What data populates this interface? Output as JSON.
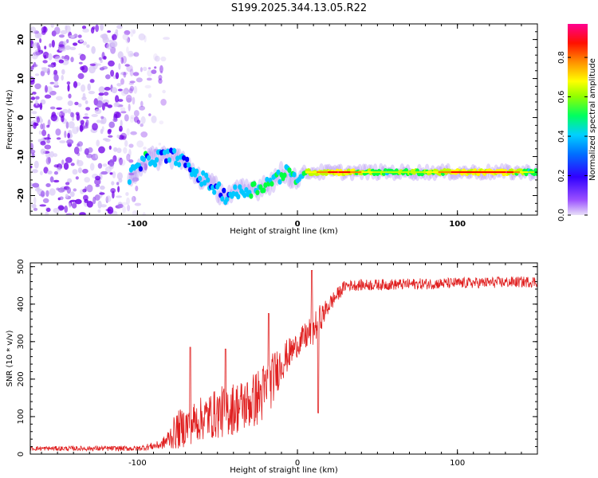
{
  "title": "S199.2025.344.13.05.R22",
  "spectrogram": {
    "xlabel": "Height of straight line (km)",
    "ylabel": "Frequency (Hz)",
    "xlim": [
      -167,
      150
    ],
    "ylim": [
      -25,
      24
    ],
    "xticks": [
      -100,
      0,
      100
    ],
    "yticks": [
      20,
      10,
      0,
      -10,
      -20
    ],
    "colorbar": {
      "label": "Normalized spectral amplitude",
      "range": [
        0,
        0.97
      ],
      "ticks": [
        "0.0",
        "0.2",
        "0.4",
        "0.6",
        "0.8"
      ],
      "colors": [
        "#e8e0f8",
        "#7a00ff",
        "#0000ff",
        "#00c8ff",
        "#00ff40",
        "#c0ff00",
        "#ffff00",
        "#ff8000",
        "#ff0000",
        "#ff0090"
      ]
    },
    "noise_region_x": [
      -167,
      -88
    ],
    "signal_track": [
      {
        "x": -105,
        "f": -15,
        "a": 0.4
      },
      {
        "x": -95,
        "f": -11,
        "a": 0.35
      },
      {
        "x": -85,
        "f": -10,
        "a": 0.3
      },
      {
        "x": -75,
        "f": -10,
        "a": 0.35
      },
      {
        "x": -65,
        "f": -14,
        "a": 0.3
      },
      {
        "x": -55,
        "f": -17,
        "a": 0.35
      },
      {
        "x": -45,
        "f": -20,
        "a": 0.3
      },
      {
        "x": -35,
        "f": -19,
        "a": 0.4
      },
      {
        "x": -25,
        "f": -18,
        "a": 0.55
      },
      {
        "x": -15,
        "f": -16,
        "a": 0.45
      },
      {
        "x": -8,
        "f": -14,
        "a": 0.5
      },
      {
        "x": 0,
        "f": -16,
        "a": 0.35
      },
      {
        "x": 5,
        "f": -14,
        "a": 0.6
      },
      {
        "x": 15,
        "f": -14,
        "a": 0.75
      },
      {
        "x": 25,
        "f": -14,
        "a": 0.9
      },
      {
        "x": 50,
        "f": -14,
        "a": 0.55
      },
      {
        "x": 80,
        "f": -14,
        "a": 0.6
      },
      {
        "x": 100,
        "f": -14,
        "a": 0.85
      },
      {
        "x": 130,
        "f": -14,
        "a": 0.9
      },
      {
        "x": 150,
        "f": -14,
        "a": 0.45
      }
    ]
  },
  "snr": {
    "type": "line",
    "xlabel": "Height of straight line (km)",
    "ylabel": "SNR (10 * v/v)",
    "xlim": [
      -167,
      150
    ],
    "ylim": [
      0,
      510
    ],
    "xticks": [
      -100,
      0,
      100
    ],
    "yticks": [
      0,
      100,
      200,
      300,
      400,
      500
    ],
    "color": "#e02020",
    "envelope": [
      {
        "x": -167,
        "base": 15,
        "spread": 10
      },
      {
        "x": -100,
        "base": 15,
        "spread": 12
      },
      {
        "x": -85,
        "base": 25,
        "spread": 20
      },
      {
        "x": -75,
        "base": 60,
        "spread": 80
      },
      {
        "x": -60,
        "base": 90,
        "spread": 90
      },
      {
        "x": -45,
        "base": 110,
        "spread": 110
      },
      {
        "x": -30,
        "base": 130,
        "spread": 110
      },
      {
        "x": -20,
        "base": 160,
        "spread": 130
      },
      {
        "x": -10,
        "base": 240,
        "spread": 80
      },
      {
        "x": 0,
        "base": 290,
        "spread": 50
      },
      {
        "x": 10,
        "base": 330,
        "spread": 70
      },
      {
        "x": 20,
        "base": 400,
        "spread": 40
      },
      {
        "x": 30,
        "base": 450,
        "spread": 25
      },
      {
        "x": 150,
        "base": 460,
        "spread": 25
      }
    ],
    "spikes": [
      {
        "x": -67,
        "y": 285
      },
      {
        "x": -45,
        "y": 280
      },
      {
        "x": -18,
        "y": 375
      },
      {
        "x": 9,
        "y": 490
      },
      {
        "x": 13,
        "y": 110
      }
    ]
  }
}
